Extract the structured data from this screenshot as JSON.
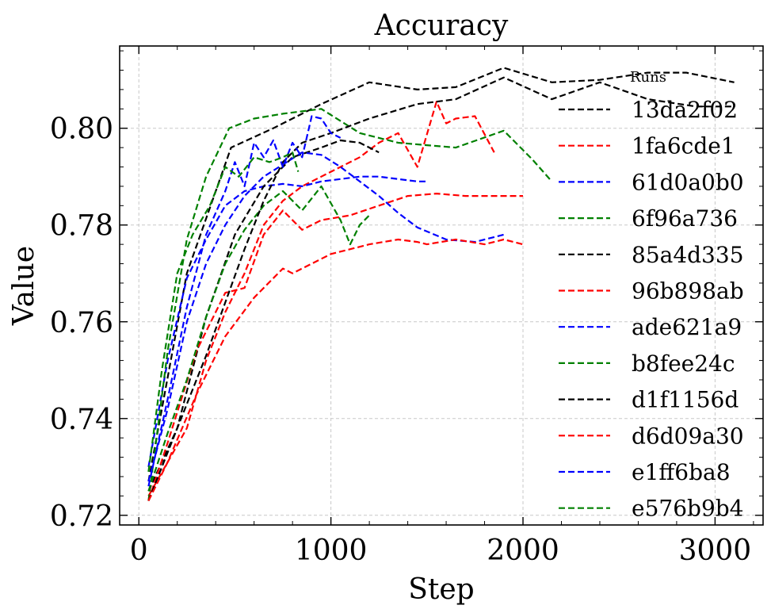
{
  "chart_data": {
    "type": "line",
    "title": "Accuracy",
    "xlabel": "Step",
    "ylabel": "Value",
    "xlim": [
      -100,
      3250
    ],
    "ylim": [
      0.718,
      0.817
    ],
    "xticks": [
      0,
      1000,
      2000,
      3000
    ],
    "xtick_labels": [
      "0",
      "1000",
      "2000",
      "3000"
    ],
    "yticks": [
      0.72,
      0.74,
      0.76,
      0.78,
      0.8
    ],
    "ytick_labels": [
      "0.72",
      "0.74",
      "0.76",
      "0.78",
      "0.80"
    ],
    "grid": true,
    "line_style": "dashed",
    "legend": {
      "title": "Runs",
      "position": "right"
    },
    "series": [
      {
        "name": "13da2f02",
        "color": "#000000",
        "x": [
          50,
          250,
          480,
          700,
          950,
          1200,
          1450,
          1650,
          1900,
          2150,
          2400,
          2650,
          2850,
          3100
        ],
        "y": [
          0.727,
          0.77,
          0.796,
          0.8,
          0.805,
          0.8095,
          0.808,
          0.8085,
          0.8125,
          0.8095,
          0.81,
          0.8115,
          0.8115,
          0.8095
        ]
      },
      {
        "name": "1fa6cde1",
        "color": "#ff0000",
        "x": [
          50,
          150,
          250,
          350,
          450,
          550,
          650,
          750,
          850,
          950,
          1050,
          1150,
          1250,
          1350,
          1450,
          1550,
          1600,
          1650,
          1750,
          1850
        ],
        "y": [
          0.724,
          0.731,
          0.738,
          0.752,
          0.762,
          0.77,
          0.78,
          0.785,
          0.788,
          0.79,
          0.792,
          0.794,
          0.797,
          0.799,
          0.792,
          0.8055,
          0.801,
          0.802,
          0.8025,
          0.795
        ]
      },
      {
        "name": "61d0a0b0",
        "color": "#0000ff",
        "x": [
          50,
          150,
          250,
          350,
          450,
          550,
          650,
          750,
          850,
          950,
          1050,
          1150,
          1250,
          1350,
          1450,
          1500
        ],
        "y": [
          0.73,
          0.752,
          0.769,
          0.777,
          0.784,
          0.787,
          0.788,
          0.7885,
          0.788,
          0.789,
          0.7895,
          0.79,
          0.79,
          0.7895,
          0.789,
          0.789
        ]
      },
      {
        "name": "6f96a736",
        "color": "#008000",
        "x": [
          50,
          150,
          250,
          350,
          470,
          600,
          750,
          950,
          1150,
          1350,
          1500,
          1650,
          1900,
          2050,
          2150
        ],
        "y": [
          0.723,
          0.754,
          0.777,
          0.79,
          0.8,
          0.802,
          0.803,
          0.804,
          0.799,
          0.797,
          0.7965,
          0.796,
          0.7995,
          0.7935,
          0.789
        ]
      },
      {
        "name": "85a4d335",
        "color": "#000000",
        "x": [
          50,
          200,
          350,
          500,
          650,
          800,
          950,
          1050,
          1150,
          1250
        ],
        "y": [
          0.725,
          0.738,
          0.761,
          0.778,
          0.788,
          0.794,
          0.796,
          0.7975,
          0.797,
          0.795
        ]
      },
      {
        "name": "96b898ab",
        "color": "#ff0000",
        "x": [
          50,
          150,
          300,
          450,
          550,
          650,
          750,
          850,
          950,
          1100,
          1250,
          1400,
          1550,
          1700,
          1850,
          2000
        ],
        "y": [
          0.723,
          0.735,
          0.754,
          0.766,
          0.767,
          0.778,
          0.783,
          0.779,
          0.781,
          0.782,
          0.784,
          0.786,
          0.7865,
          0.786,
          0.786,
          0.786
        ]
      },
      {
        "name": "ade621a9",
        "color": "#0000ff",
        "x": [
          50,
          150,
          250,
          350,
          450,
          550,
          650,
          750,
          850,
          950,
          1050,
          1150,
          1250,
          1350,
          1450,
          1600,
          1750,
          1900
        ],
        "y": [
          0.727,
          0.742,
          0.76,
          0.772,
          0.78,
          0.786,
          0.79,
          0.7925,
          0.795,
          0.7945,
          0.792,
          0.789,
          0.786,
          0.7825,
          0.7795,
          0.777,
          0.7765,
          0.778
        ]
      },
      {
        "name": "b8fee24c",
        "color": "#008000",
        "x": [
          50,
          150,
          250,
          350,
          450,
          550,
          650,
          750,
          850,
          950,
          1050,
          1100,
          1150,
          1200
        ],
        "y": [
          0.725,
          0.737,
          0.748,
          0.761,
          0.772,
          0.779,
          0.784,
          0.787,
          0.783,
          0.788,
          0.781,
          0.776,
          0.78,
          0.782
        ]
      },
      {
        "name": "d1f1156d",
        "color": "#000000",
        "x": [
          50,
          150,
          250,
          350,
          450,
          550,
          650,
          750,
          850,
          1000,
          1200,
          1450,
          1650,
          1900,
          2150,
          2400,
          2650,
          2900,
          3100
        ],
        "y": [
          0.723,
          0.733,
          0.743,
          0.753,
          0.764,
          0.775,
          0.785,
          0.793,
          0.797,
          0.799,
          0.802,
          0.805,
          0.806,
          0.8105,
          0.806,
          0.8095,
          0.806,
          0.8045,
          0.8045
        ]
      },
      {
        "name": "d6d09a30",
        "color": "#ff0000",
        "x": [
          50,
          150,
          300,
          450,
          600,
          750,
          800,
          900,
          1000,
          1150,
          1200,
          1350,
          1450,
          1500,
          1650,
          1800,
          1900,
          2000
        ],
        "y": [
          0.723,
          0.731,
          0.745,
          0.757,
          0.765,
          0.771,
          0.77,
          0.772,
          0.774,
          0.7755,
          0.776,
          0.777,
          0.7765,
          0.776,
          0.777,
          0.776,
          0.777,
          0.776
        ]
      },
      {
        "name": "e1ff6ba8",
        "color": "#0000ff",
        "x": [
          50,
          150,
          250,
          350,
          450,
          500,
          550,
          600,
          650,
          700,
          750,
          800,
          850,
          900,
          950,
          1000,
          1050
        ],
        "y": [
          0.726,
          0.744,
          0.763,
          0.778,
          0.787,
          0.793,
          0.788,
          0.797,
          0.794,
          0.7975,
          0.792,
          0.797,
          0.794,
          0.8025,
          0.802,
          0.799,
          0.798
        ]
      },
      {
        "name": "e576b9b4",
        "color": "#008000",
        "x": [
          50,
          120,
          200,
          280,
          370,
          450,
          520,
          600,
          680,
          750,
          800,
          830
        ],
        "y": [
          0.729,
          0.75,
          0.77,
          0.778,
          0.784,
          0.792,
          0.79,
          0.794,
          0.793,
          0.794,
          0.795,
          0.791
        ]
      }
    ]
  }
}
